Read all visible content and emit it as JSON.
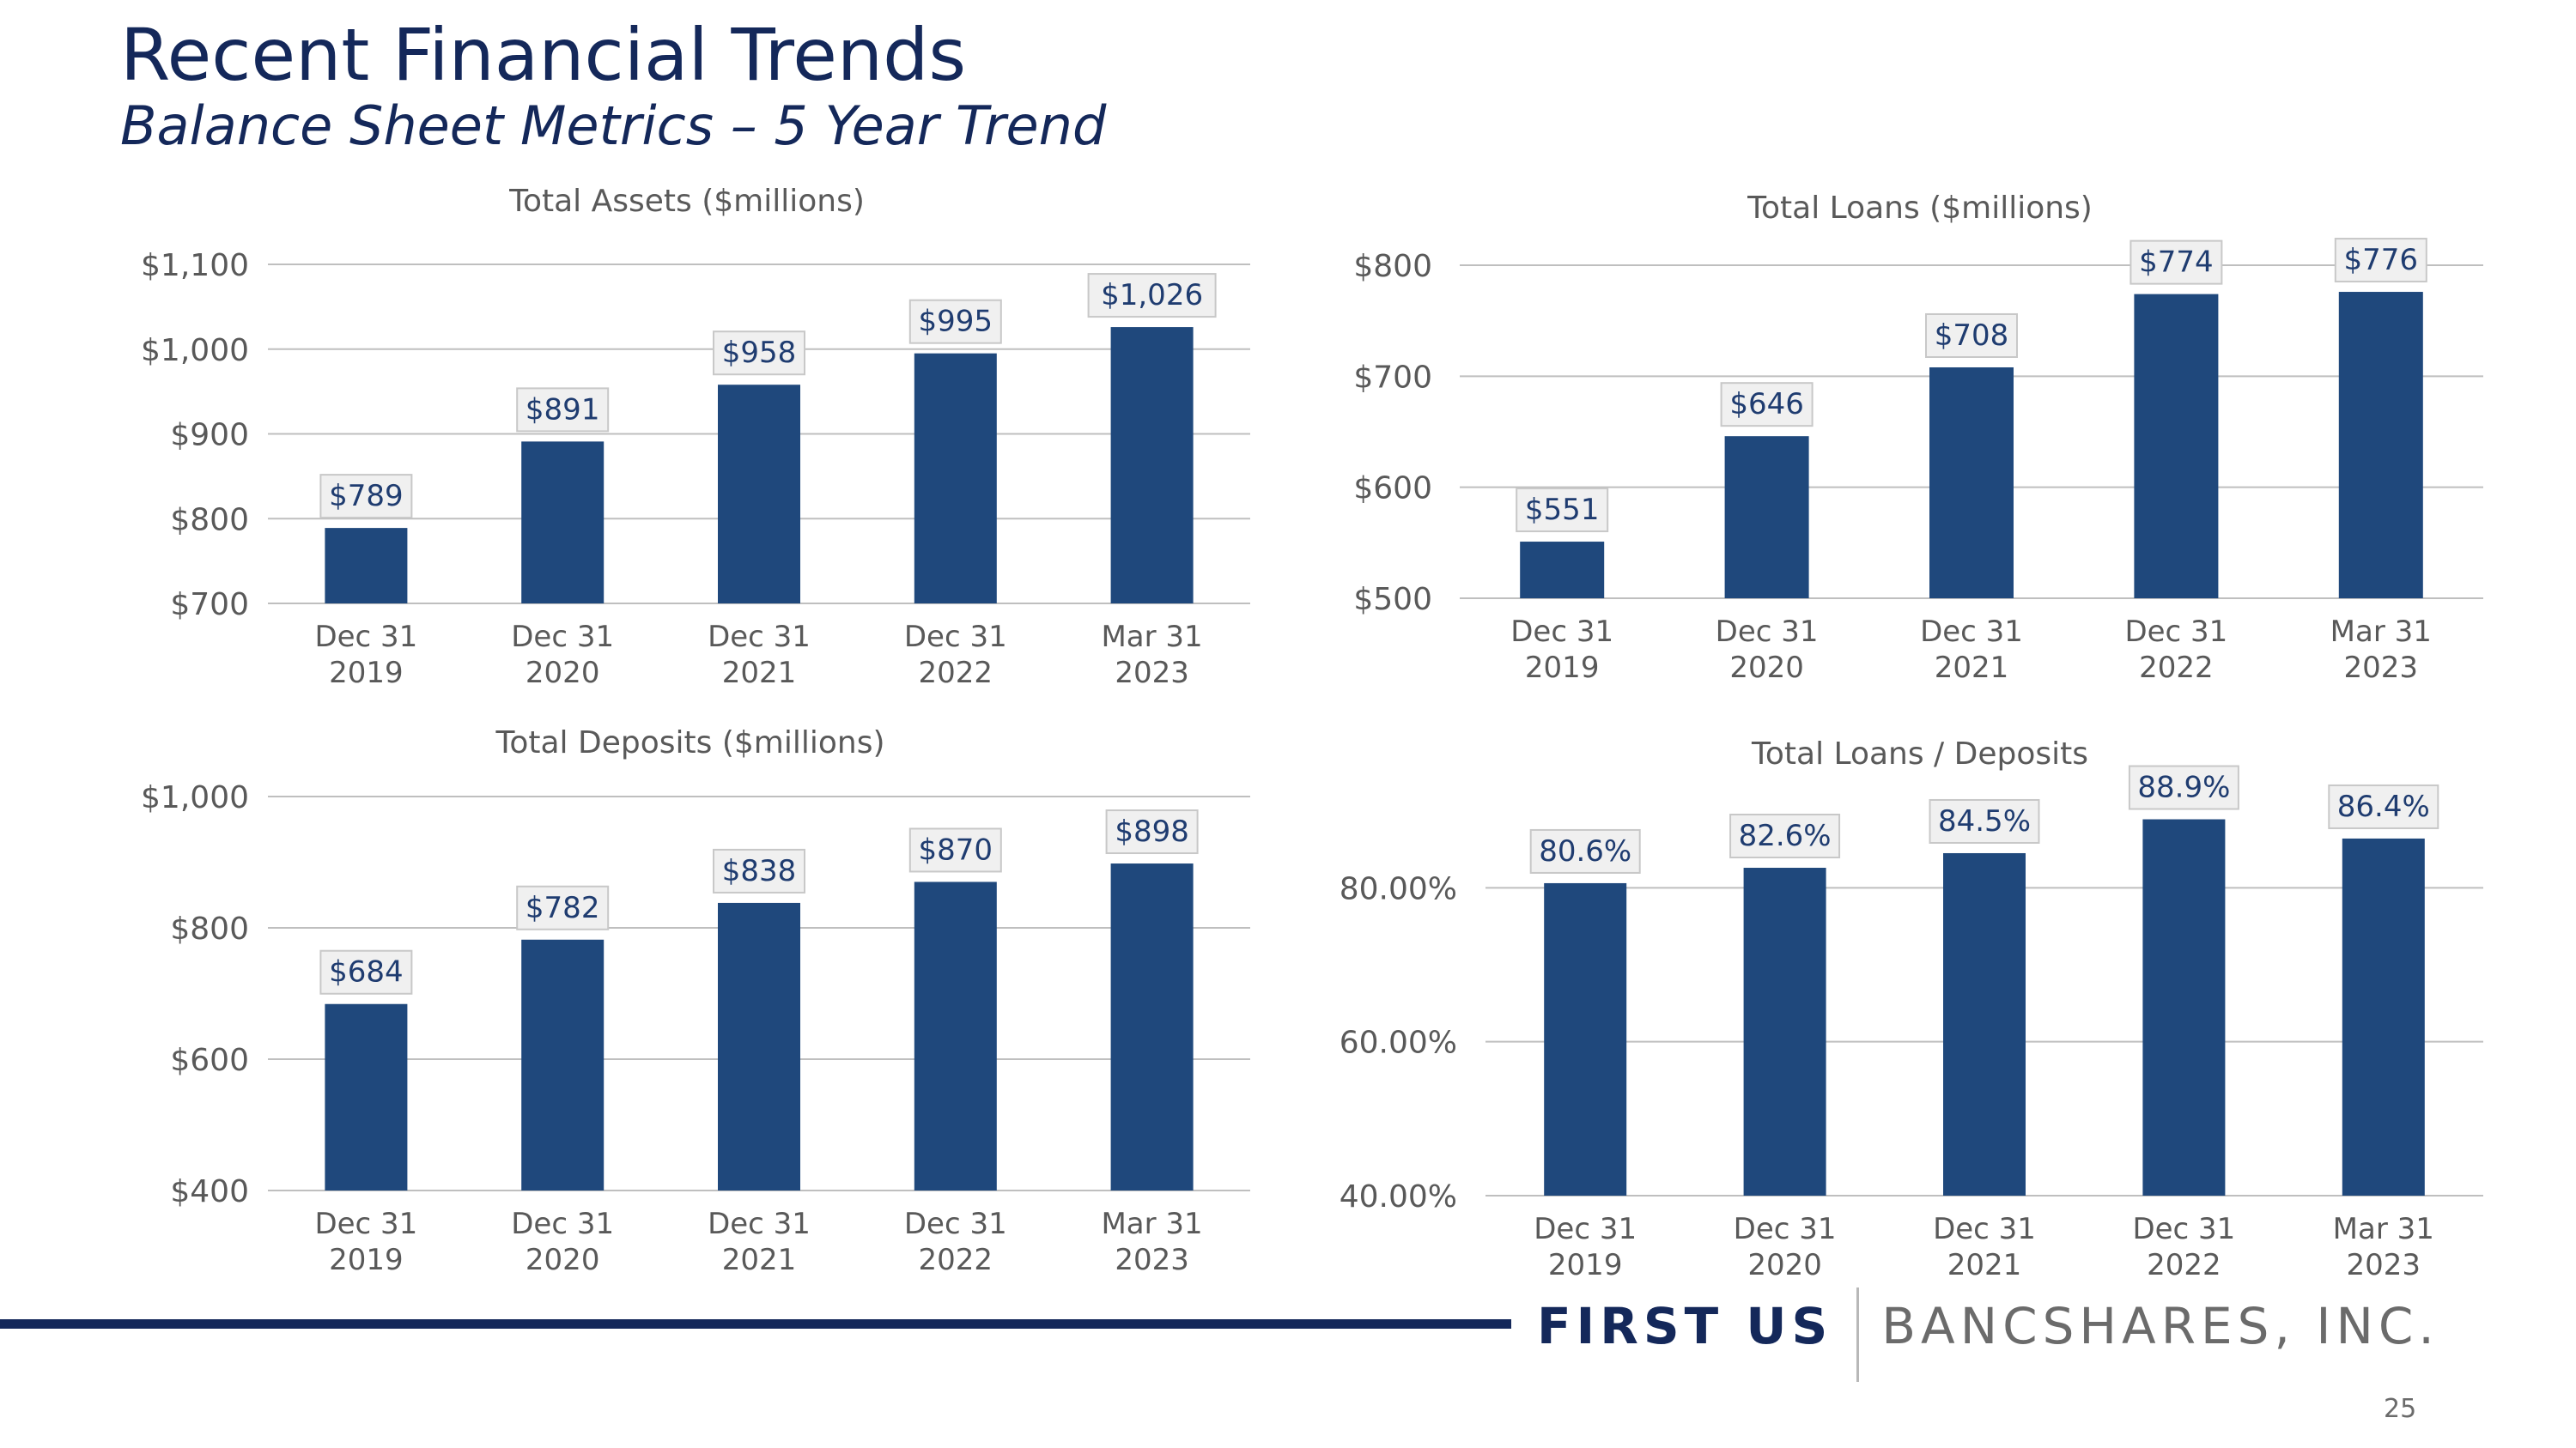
{
  "slide": {
    "title": "Recent Financial Trends",
    "subtitle": "Balance Sheet Metrics – 5 Year Trend",
    "page_number": "25"
  },
  "brand": {
    "name_bold": "FIRST US",
    "name_light": "BANCSHARES, INC."
  },
  "colors": {
    "title": "#14285a",
    "bar": "#1f487c",
    "axis_text": "#595959",
    "gridline": "#bfbfbf",
    "label_box_fill": "#f0f0f0",
    "label_box_border": "#c8c8c8",
    "label_text": "#1f3c70",
    "footer_rule": "#14285a"
  },
  "chart_data": [
    {
      "type": "bar",
      "title": "Total Assets ($millions)",
      "categories": [
        [
          "Dec 31",
          "2019"
        ],
        [
          "Dec 31",
          "2020"
        ],
        [
          "Dec 31",
          "2021"
        ],
        [
          "Dec 31",
          "2022"
        ],
        [
          "Mar 31",
          "2023"
        ]
      ],
      "values": [
        789,
        891,
        958,
        995,
        1026
      ],
      "value_labels": [
        "$789",
        "$891",
        "$958",
        "$995",
        "$1,026"
      ],
      "ylim": [
        700,
        1100
      ],
      "yticks": [
        700,
        800,
        900,
        1000,
        1100
      ],
      "ytick_labels": [
        "$700",
        "$800",
        "$900",
        "$1,000",
        "$1,100"
      ],
      "grid": true
    },
    {
      "type": "bar",
      "title": "Total Loans ($millions)",
      "categories": [
        [
          "Dec 31",
          "2019"
        ],
        [
          "Dec 31",
          "2020"
        ],
        [
          "Dec 31",
          "2021"
        ],
        [
          "Dec 31",
          "2022"
        ],
        [
          "Mar 31",
          "2023"
        ]
      ],
      "values": [
        551,
        646,
        708,
        774,
        776
      ],
      "value_labels": [
        "$551",
        "$646",
        "$708",
        "$774",
        "$776"
      ],
      "ylim": [
        500,
        800
      ],
      "yticks": [
        500,
        600,
        700,
        800
      ],
      "ytick_labels": [
        "$500",
        "$600",
        "$700",
        "$800"
      ],
      "grid": true
    },
    {
      "type": "bar",
      "title": "Total Deposits ($millions)",
      "categories": [
        [
          "Dec 31",
          "2019"
        ],
        [
          "Dec 31",
          "2020"
        ],
        [
          "Dec 31",
          "2021"
        ],
        [
          "Dec 31",
          "2022"
        ],
        [
          "Mar 31",
          "2023"
        ]
      ],
      "values": [
        684,
        782,
        838,
        870,
        898
      ],
      "value_labels": [
        "$684",
        "$782",
        "$838",
        "$870",
        "$898"
      ],
      "ylim": [
        400,
        1000
      ],
      "yticks": [
        400,
        600,
        800,
        1000
      ],
      "ytick_labels": [
        "$400",
        "$600",
        "$800",
        "$1,000"
      ],
      "grid": true
    },
    {
      "type": "bar",
      "title": "Total Loans / Deposits",
      "categories": [
        [
          "Dec 31",
          "2019"
        ],
        [
          "Dec 31",
          "2020"
        ],
        [
          "Dec 31",
          "2021"
        ],
        [
          "Dec 31",
          "2022"
        ],
        [
          "Mar 31",
          "2023"
        ]
      ],
      "values": [
        80.6,
        82.6,
        84.5,
        88.9,
        86.4
      ],
      "value_labels": [
        "80.6%",
        "82.6%",
        "84.5%",
        "88.9%",
        "86.4%"
      ],
      "ylim": [
        40,
        100
      ],
      "yticks": [
        40,
        60,
        80
      ],
      "ytick_labels": [
        "40.00%",
        "60.00%",
        "80.00%"
      ],
      "grid": true
    }
  ]
}
